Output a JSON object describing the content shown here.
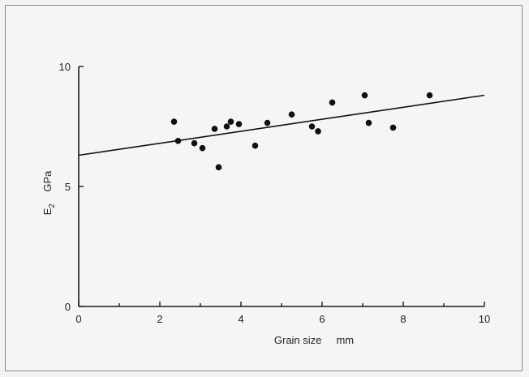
{
  "chart_data": {
    "type": "scatter",
    "xlabel": "Grain size     mm",
    "ylabel_main": "E",
    "ylabel_sub": "2",
    "ylabel_unit": "GPa",
    "xlim": [
      0,
      10
    ],
    "ylim": [
      0,
      10
    ],
    "x_ticks": [
      0,
      2,
      4,
      6,
      8,
      10
    ],
    "x_minor_ticks": [
      1,
      3,
      5,
      7,
      9
    ],
    "y_ticks": [
      0,
      5,
      10
    ],
    "grid": false,
    "points": [
      {
        "x": 2.35,
        "y": 7.7
      },
      {
        "x": 2.45,
        "y": 6.9
      },
      {
        "x": 2.85,
        "y": 6.8
      },
      {
        "x": 3.05,
        "y": 6.6
      },
      {
        "x": 3.35,
        "y": 7.4
      },
      {
        "x": 3.45,
        "y": 5.8
      },
      {
        "x": 3.65,
        "y": 7.5
      },
      {
        "x": 3.75,
        "y": 7.7
      },
      {
        "x": 3.95,
        "y": 7.6
      },
      {
        "x": 4.35,
        "y": 6.7
      },
      {
        "x": 4.65,
        "y": 7.65
      },
      {
        "x": 5.25,
        "y": 8.0
      },
      {
        "x": 5.75,
        "y": 7.5
      },
      {
        "x": 5.9,
        "y": 7.3
      },
      {
        "x": 6.25,
        "y": 8.5
      },
      {
        "x": 7.05,
        "y": 8.8
      },
      {
        "x": 7.15,
        "y": 7.65
      },
      {
        "x": 7.75,
        "y": 7.45
      },
      {
        "x": 8.65,
        "y": 8.8
      }
    ],
    "fit_line": {
      "x0": 0,
      "y0": 6.3,
      "x1": 10,
      "y1": 8.8
    }
  }
}
